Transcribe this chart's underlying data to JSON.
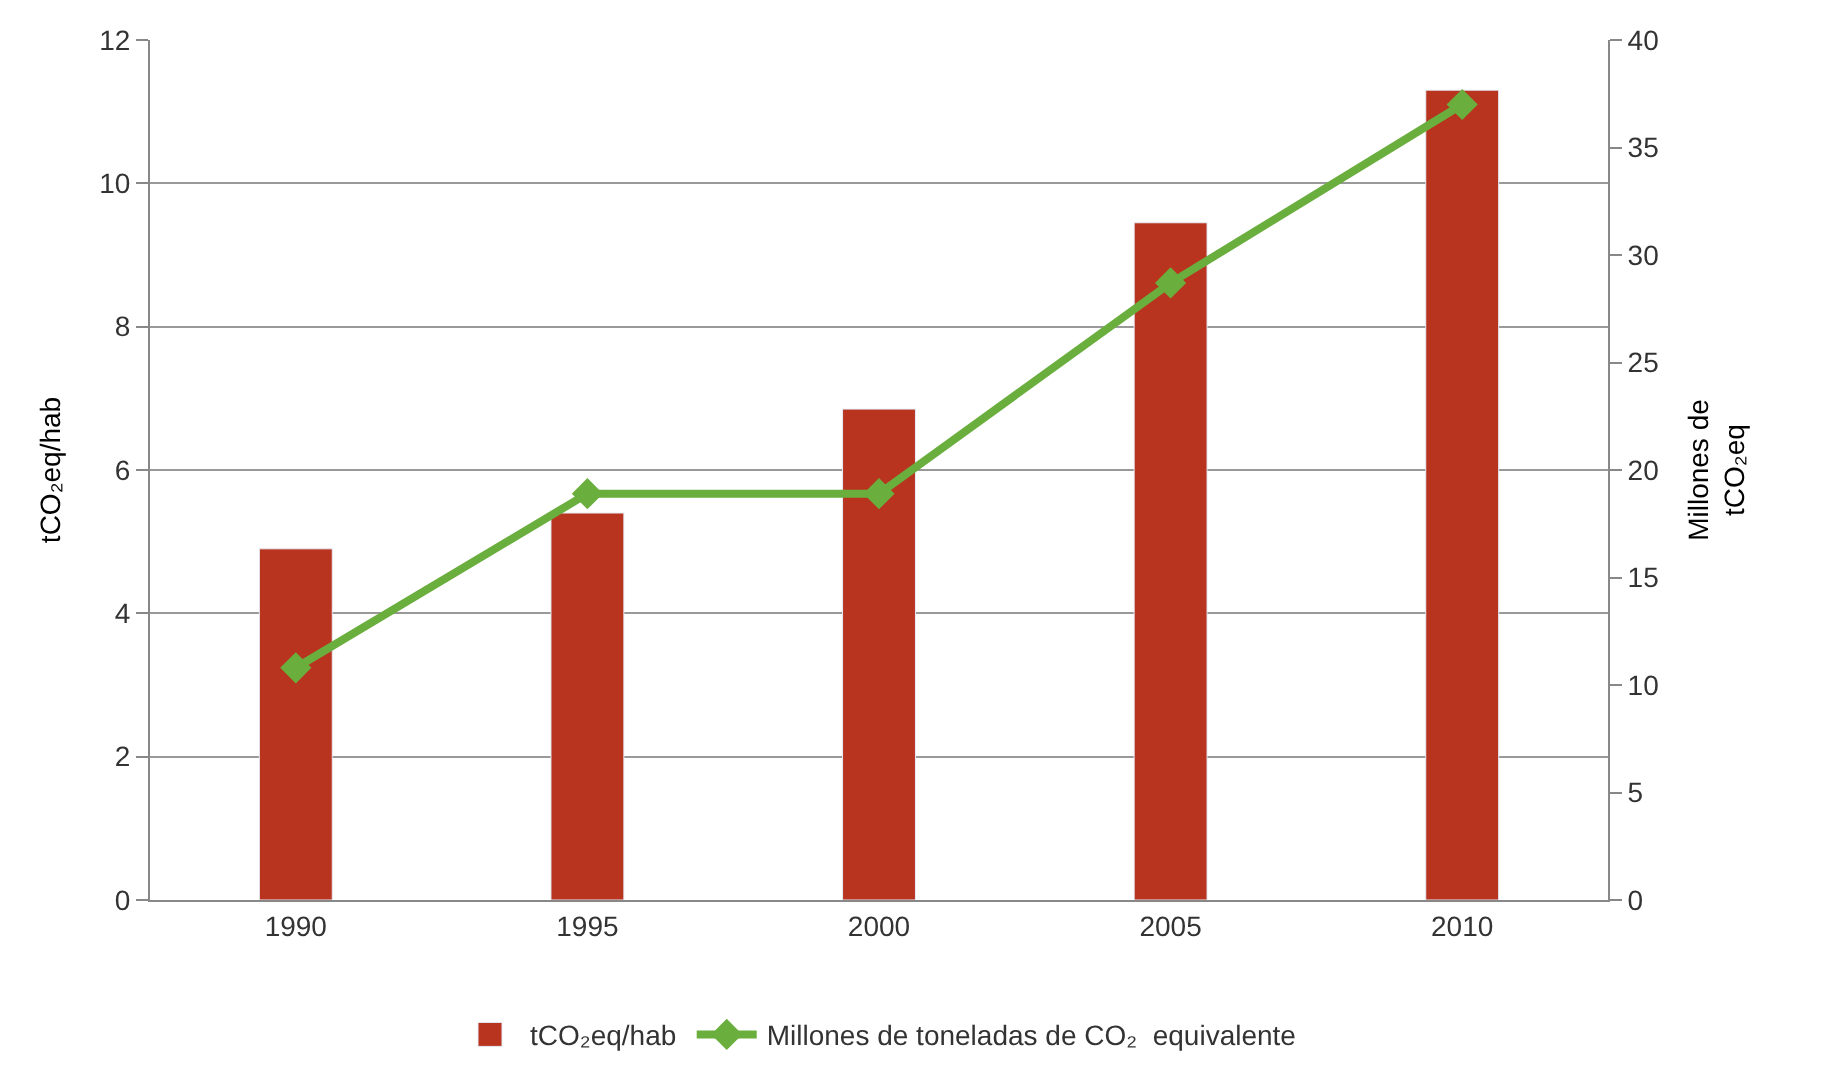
{
  "chart_data": {
    "type": "bar",
    "categories": [
      "1990",
      "1995",
      "2000",
      "2005",
      "2010"
    ],
    "series": [
      {
        "name": "tCO₂eq/hab",
        "color": "#b8341f",
        "values": [
          4.9,
          5.4,
          6.85,
          9.45,
          11.3
        ]
      },
      {
        "name": "Millones de toneladas de CO₂  equivalente",
        "type": "line",
        "axis": "y2",
        "color": "#6aae3e",
        "marker": "diamond",
        "values": [
          10.8,
          18.9,
          18.9,
          28.7,
          37.0
        ]
      }
    ],
    "ylabel": "tCO₂eq/hab",
    "y2label": "Millones de\ntCO₂eq",
    "ylim": [
      0,
      12
    ],
    "yticks": [
      0,
      2,
      4,
      6,
      8,
      10,
      12
    ],
    "y2lim": [
      0,
      40
    ],
    "y2ticks": [
      0,
      5,
      10,
      15,
      20,
      25,
      30,
      35,
      40
    ],
    "grid": "y",
    "legend": "bottom"
  }
}
